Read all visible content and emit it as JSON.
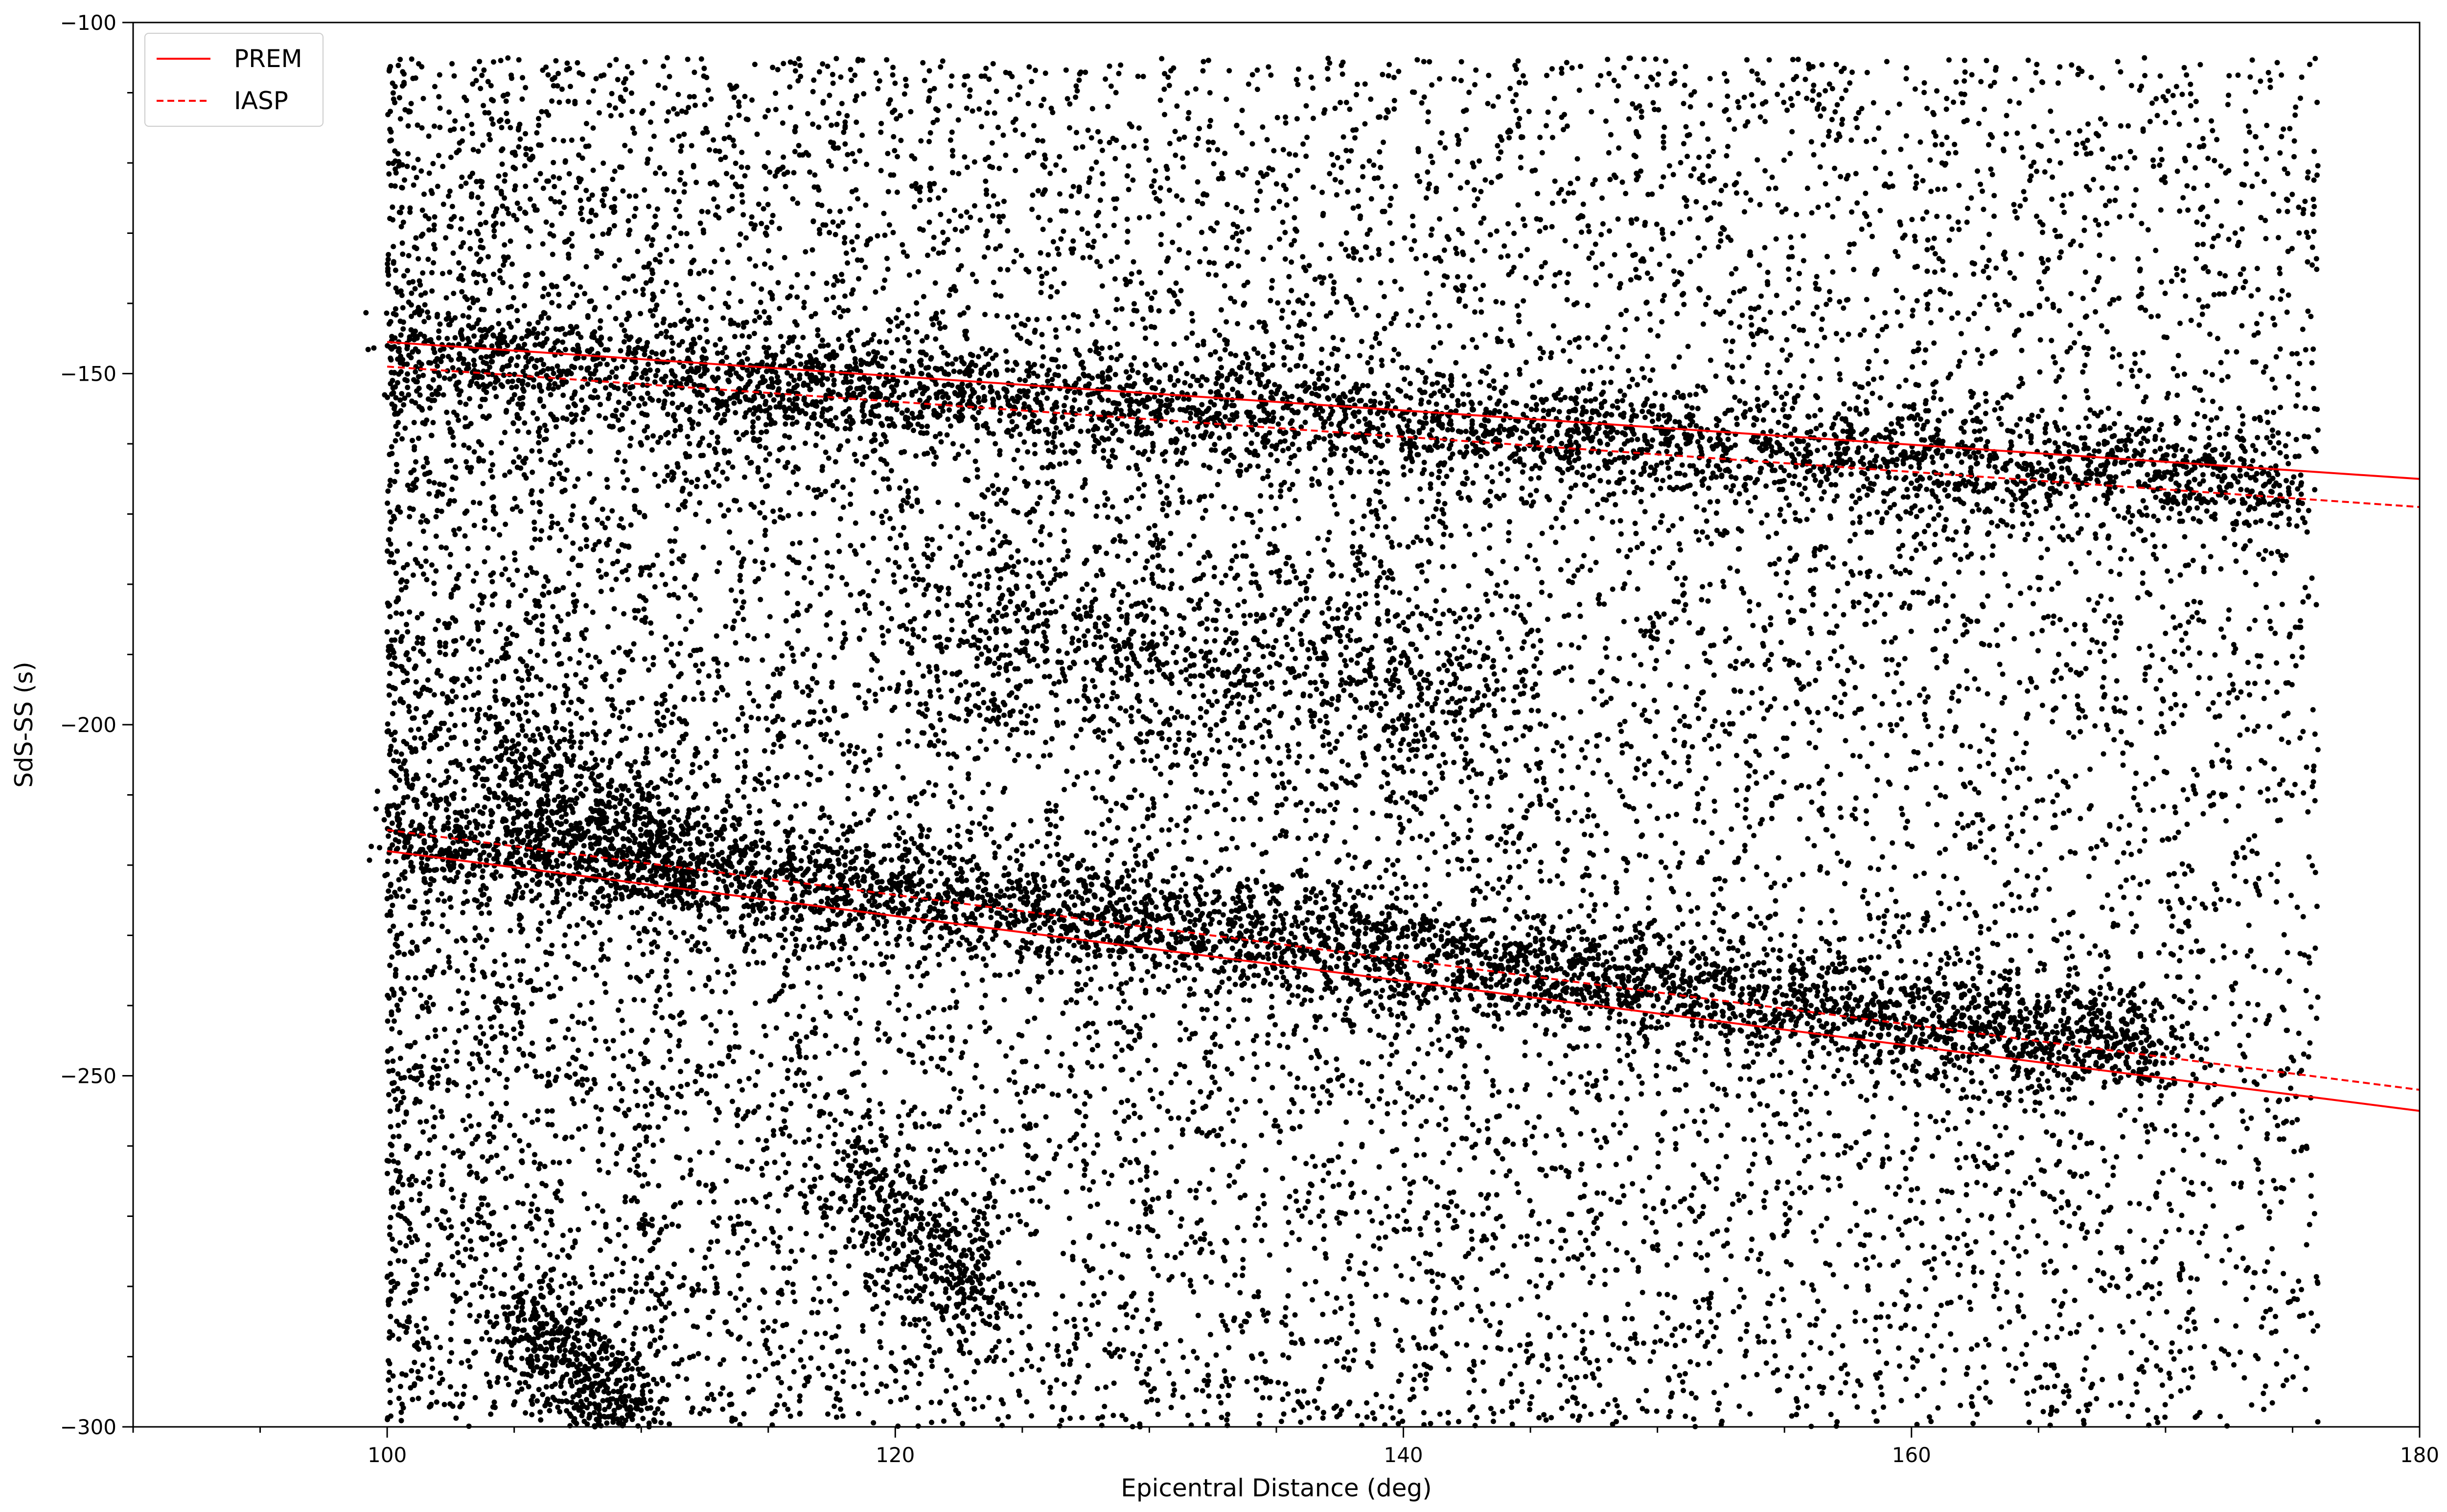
{
  "chart_data": {
    "type": "scatter",
    "title": "",
    "xlabel": "Epicentral Distance (deg)",
    "ylabel": "SdS-SS (s)",
    "xlim": [
      90,
      180
    ],
    "ylim": [
      -300,
      -100
    ],
    "x_ticks": [
      100,
      120,
      140,
      160,
      180
    ],
    "x_tick_labels": [
      "100",
      "120",
      "140",
      "160",
      "180"
    ],
    "y_ticks": [
      -100,
      -150,
      -200,
      -250,
      -300
    ],
    "y_tick_labels": [
      "−100",
      "−150",
      "−200",
      "−250",
      "−300"
    ],
    "x_minor_step": 5,
    "y_minor_step": 10,
    "grid": false,
    "legend": {
      "position": "top-left",
      "entries": [
        {
          "label": "PREM",
          "style": "solid",
          "color": "#ff0000"
        },
        {
          "label": "IASP",
          "style": "dashed",
          "color": "#ff0000"
        }
      ]
    },
    "scatter": {
      "color": "#000000",
      "x_range": [
        100,
        176
      ],
      "clusters": [
        {
          "x0": 100,
          "y0": -147,
          "x1": 175,
          "y1": -166,
          "count": 3200,
          "spread": 4
        },
        {
          "x0": 100,
          "y0": -215,
          "x1": 170,
          "y1": -246,
          "count": 3800,
          "spread": 4
        },
        {
          "x0": 104,
          "y0": -204,
          "x1": 112,
          "y1": -220,
          "count": 500,
          "spread": 5
        },
        {
          "x0": 120,
          "y0": -185,
          "x1": 145,
          "y1": -198,
          "count": 900,
          "spread": 8
        },
        {
          "x0": 118,
          "y0": -265,
          "x1": 124,
          "y1": -282,
          "count": 400,
          "spread": 5
        },
        {
          "x0": 105,
          "y0": -285,
          "x1": 110,
          "y1": -300,
          "count": 500,
          "spread": 5
        }
      ],
      "background_count": 14000
    },
    "series": [
      {
        "name": "PREM",
        "style": "solid",
        "x": [
          100,
          180
        ],
        "y": [
          -145.5,
          -165
        ]
      },
      {
        "name": "IASP",
        "style": "dashed",
        "x": [
          100,
          180
        ],
        "y": [
          -149,
          -169
        ]
      },
      {
        "name": "PREM",
        "style": "solid",
        "x": [
          100,
          180
        ],
        "y": [
          -218,
          -255
        ]
      },
      {
        "name": "IASP",
        "style": "dashed",
        "x": [
          100,
          180
        ],
        "y": [
          -215,
          -252
        ]
      }
    ]
  }
}
